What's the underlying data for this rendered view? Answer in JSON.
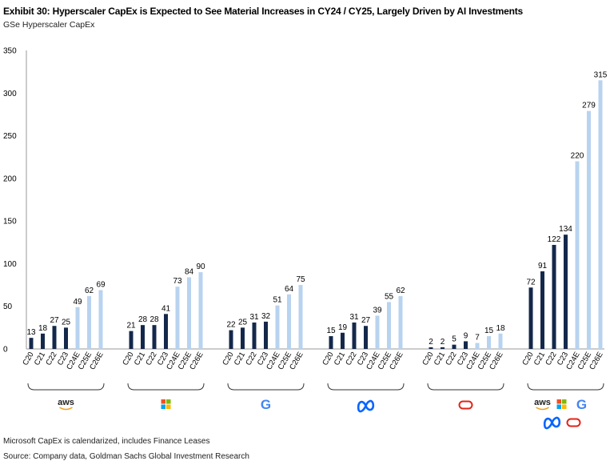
{
  "header": {
    "title": "Exhibit 30: Hyperscaler CapEx is Expected to See Material Increases in CY24 / CY25, Largely Driven by AI Investments",
    "subtitle": "GSe Hyperscaler CapEx"
  },
  "footer": {
    "note": "Microsoft CapEx is calendarized, includes Finance Leases",
    "source": "Source: Company data, Goldman Sachs Global Investment Research"
  },
  "colors": {
    "actual": "#14284b",
    "estimate": "#b8d3ef",
    "axis": "#999999"
  },
  "chart_data": {
    "type": "bar",
    "categories": [
      "C20",
      "C21",
      "C22",
      "C23",
      "C24E",
      "C25E",
      "C26E"
    ],
    "estimate_from_index": 4,
    "ylim": [
      0,
      350
    ],
    "yticks": [
      0,
      50,
      100,
      150,
      200,
      250,
      300,
      350
    ],
    "grid": false,
    "groups": [
      {
        "logo": "aws-logo",
        "logo_text": "aws",
        "values": [
          13,
          18,
          27,
          25,
          49,
          62,
          69
        ]
      },
      {
        "logo": "microsoft-logo",
        "values": [
          21,
          28,
          28,
          41,
          73,
          84,
          90
        ]
      },
      {
        "logo": "google-logo",
        "logo_text": "G",
        "values": [
          22,
          25,
          31,
          32,
          51,
          64,
          75
        ]
      },
      {
        "logo": "meta-logo",
        "values": [
          15,
          19,
          31,
          27,
          39,
          55,
          62
        ]
      },
      {
        "logo": "oracle-logo",
        "values": [
          2,
          2,
          5,
          9,
          7,
          15,
          18
        ]
      },
      {
        "logo": "combined-logos",
        "logo_text": "aws",
        "values": [
          72,
          91,
          122,
          134,
          220,
          279,
          315
        ]
      }
    ]
  }
}
